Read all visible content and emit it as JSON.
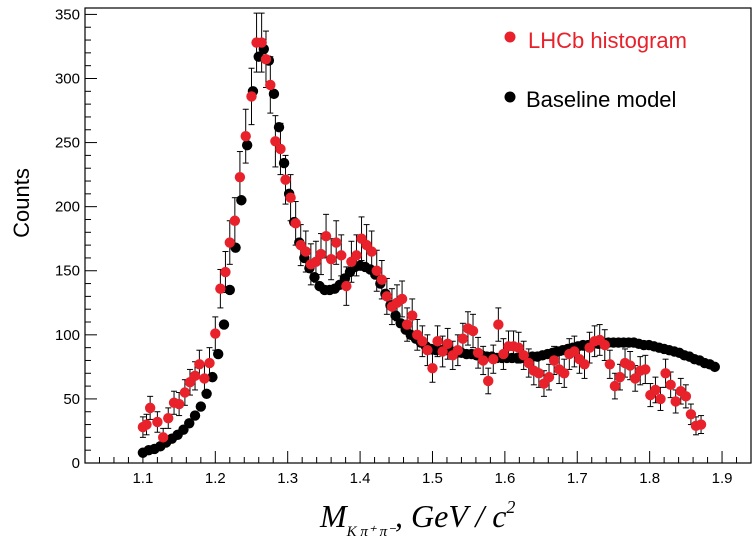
{
  "chart_data": {
    "type": "scatter",
    "xlabel": {
      "base": "M",
      "sub": "K π⁺ π⁻",
      "rest": ", GeV / c",
      "sup": "2"
    },
    "ylabel": "Counts",
    "xlim": [
      1.02,
      1.94
    ],
    "ylim": [
      0,
      355
    ],
    "xticks": [
      1.1,
      1.2,
      1.3,
      1.4,
      1.5,
      1.6,
      1.7,
      1.8,
      1.9
    ],
    "xtick_labels": [
      "1.1",
      "1.2",
      "1.3",
      "1.4",
      "1.5",
      "1.6",
      "1.7",
      "1.8",
      "1.9"
    ],
    "yticks": [
      0,
      50,
      100,
      150,
      200,
      250,
      300,
      350
    ],
    "ytick_labels": [
      "0",
      "50",
      "100",
      "150",
      "200",
      "250",
      "300",
      "350"
    ],
    "grid": false,
    "legend_position": "top-right",
    "series": [
      {
        "name": "LHCb histogram",
        "color": "#e8212b",
        "marker": "circle",
        "error_bars": true,
        "points": [
          [
            1.1,
            28,
            8
          ],
          [
            1.105,
            30,
            8
          ],
          [
            1.11,
            43,
            9
          ],
          [
            1.12,
            32,
            8
          ],
          [
            1.128,
            20,
            7
          ],
          [
            1.135,
            35,
            8
          ],
          [
            1.143,
            47,
            9
          ],
          [
            1.15,
            46,
            9
          ],
          [
            1.158,
            55,
            10
          ],
          [
            1.165,
            63,
            10
          ],
          [
            1.172,
            68,
            11
          ],
          [
            1.178,
            77,
            11
          ],
          [
            1.185,
            66,
            11
          ],
          [
            1.192,
            78,
            12
          ],
          [
            1.2,
            101,
            13
          ],
          [
            1.207,
            136,
            15
          ],
          [
            1.214,
            149,
            16
          ],
          [
            1.22,
            172,
            17
          ],
          [
            1.227,
            189,
            18
          ],
          [
            1.234,
            223,
            20
          ],
          [
            1.242,
            255,
            21
          ],
          [
            1.25,
            286,
            22
          ],
          [
            1.257,
            328,
            23
          ],
          [
            1.264,
            328,
            23
          ],
          [
            1.27,
            315,
            22
          ],
          [
            1.276,
            295,
            22
          ],
          [
            1.283,
            251,
            20
          ],
          [
            1.29,
            245,
            20
          ],
          [
            1.297,
            221,
            19
          ],
          [
            1.304,
            207,
            18
          ],
          [
            1.311,
            187,
            17
          ],
          [
            1.318,
            170,
            16
          ],
          [
            1.325,
            165,
            16
          ],
          [
            1.332,
            155,
            16
          ],
          [
            1.339,
            157,
            16
          ],
          [
            1.346,
            163,
            16
          ],
          [
            1.353,
            177,
            17
          ],
          [
            1.36,
            159,
            16
          ],
          [
            1.367,
            172,
            17
          ],
          [
            1.374,
            162,
            16
          ],
          [
            1.381,
            138,
            15
          ],
          [
            1.388,
            157,
            16
          ],
          [
            1.395,
            162,
            16
          ],
          [
            1.402,
            175,
            17
          ],
          [
            1.409,
            170,
            16
          ],
          [
            1.416,
            165,
            16
          ],
          [
            1.423,
            150,
            16
          ],
          [
            1.43,
            143,
            15
          ],
          [
            1.437,
            130,
            14
          ],
          [
            1.444,
            122,
            14
          ],
          [
            1.451,
            125,
            14
          ],
          [
            1.458,
            128,
            14
          ],
          [
            1.465,
            108,
            13
          ],
          [
            1.472,
            115,
            13
          ],
          [
            1.479,
            100,
            12
          ],
          [
            1.486,
            95,
            12
          ],
          [
            1.493,
            88,
            12
          ],
          [
            1.5,
            74,
            11
          ],
          [
            1.507,
            95,
            12
          ],
          [
            1.514,
            87,
            12
          ],
          [
            1.521,
            93,
            12
          ],
          [
            1.528,
            84,
            11
          ],
          [
            1.535,
            88,
            12
          ],
          [
            1.542,
            97,
            12
          ],
          [
            1.549,
            105,
            13
          ],
          [
            1.556,
            103,
            13
          ],
          [
            1.563,
            86,
            12
          ],
          [
            1.57,
            80,
            11
          ],
          [
            1.577,
            64,
            10
          ],
          [
            1.584,
            81,
            11
          ],
          [
            1.591,
            108,
            13
          ],
          [
            1.598,
            85,
            12
          ],
          [
            1.605,
            91,
            12
          ],
          [
            1.612,
            91,
            12
          ],
          [
            1.619,
            90,
            12
          ],
          [
            1.626,
            84,
            11
          ],
          [
            1.633,
            78,
            11
          ],
          [
            1.64,
            72,
            11
          ],
          [
            1.647,
            70,
            11
          ],
          [
            1.654,
            62,
            10
          ],
          [
            1.661,
            67,
            10
          ],
          [
            1.668,
            80,
            11
          ],
          [
            1.675,
            73,
            11
          ],
          [
            1.682,
            70,
            11
          ],
          [
            1.689,
            85,
            12
          ],
          [
            1.696,
            87,
            12
          ],
          [
            1.703,
            81,
            11
          ],
          [
            1.71,
            77,
            11
          ],
          [
            1.717,
            90,
            12
          ],
          [
            1.724,
            95,
            12
          ],
          [
            1.731,
            96,
            12
          ],
          [
            1.738,
            92,
            12
          ],
          [
            1.745,
            77,
            11
          ],
          [
            1.752,
            60,
            10
          ],
          [
            1.759,
            67,
            10
          ],
          [
            1.766,
            78,
            11
          ],
          [
            1.773,
            76,
            11
          ],
          [
            1.78,
            66,
            10
          ],
          [
            1.787,
            72,
            11
          ],
          [
            1.794,
            73,
            11
          ],
          [
            1.801,
            53,
            9
          ],
          [
            1.808,
            57,
            10
          ],
          [
            1.815,
            50,
            9
          ],
          [
            1.822,
            70,
            11
          ],
          [
            1.829,
            61,
            10
          ],
          [
            1.836,
            48,
            9
          ],
          [
            1.843,
            56,
            10
          ],
          [
            1.85,
            52,
            9
          ],
          [
            1.857,
            38,
            8
          ],
          [
            1.864,
            29,
            7
          ],
          [
            1.871,
            30,
            7
          ]
        ]
      },
      {
        "name": "Baseline model",
        "color": "#000000",
        "marker": "circle",
        "error_bars": false,
        "points": [
          [
            1.1,
            8
          ],
          [
            1.108,
            10
          ],
          [
            1.116,
            11
          ],
          [
            1.124,
            13
          ],
          [
            1.132,
            16
          ],
          [
            1.14,
            19
          ],
          [
            1.148,
            22
          ],
          [
            1.156,
            26
          ],
          [
            1.164,
            31
          ],
          [
            1.172,
            37
          ],
          [
            1.18,
            44
          ],
          [
            1.188,
            54
          ],
          [
            1.196,
            67
          ],
          [
            1.204,
            85
          ],
          [
            1.212,
            108
          ],
          [
            1.22,
            135
          ],
          [
            1.228,
            168
          ],
          [
            1.236,
            205
          ],
          [
            1.244,
            248
          ],
          [
            1.252,
            290
          ],
          [
            1.26,
            317
          ],
          [
            1.267,
            323
          ],
          [
            1.274,
            314
          ],
          [
            1.281,
            288
          ],
          [
            1.288,
            262
          ],
          [
            1.295,
            234
          ],
          [
            1.302,
            210
          ],
          [
            1.309,
            188
          ],
          [
            1.316,
            172
          ],
          [
            1.323,
            160
          ],
          [
            1.33,
            152
          ],
          [
            1.337,
            145
          ],
          [
            1.344,
            138
          ],
          [
            1.351,
            135
          ],
          [
            1.358,
            135
          ],
          [
            1.365,
            136
          ],
          [
            1.372,
            139
          ],
          [
            1.379,
            144
          ],
          [
            1.386,
            149
          ],
          [
            1.393,
            153
          ],
          [
            1.4,
            154
          ],
          [
            1.407,
            153
          ],
          [
            1.414,
            151
          ],
          [
            1.421,
            147
          ],
          [
            1.428,
            140
          ],
          [
            1.435,
            132
          ],
          [
            1.442,
            123
          ],
          [
            1.449,
            115
          ],
          [
            1.456,
            109
          ],
          [
            1.463,
            104
          ],
          [
            1.47,
            100
          ],
          [
            1.477,
            97
          ],
          [
            1.484,
            94
          ],
          [
            1.491,
            91
          ],
          [
            1.498,
            89
          ],
          [
            1.505,
            88
          ],
          [
            1.512,
            88
          ],
          [
            1.519,
            88
          ],
          [
            1.526,
            87
          ],
          [
            1.533,
            86
          ],
          [
            1.54,
            86
          ],
          [
            1.547,
            85
          ],
          [
            1.554,
            85
          ],
          [
            1.561,
            84
          ],
          [
            1.568,
            84
          ],
          [
            1.575,
            83
          ],
          [
            1.582,
            83
          ],
          [
            1.589,
            82
          ],
          [
            1.596,
            82
          ],
          [
            1.603,
            82
          ],
          [
            1.61,
            82
          ],
          [
            1.617,
            82
          ],
          [
            1.624,
            82
          ],
          [
            1.631,
            82
          ],
          [
            1.638,
            83
          ],
          [
            1.645,
            83
          ],
          [
            1.652,
            84
          ],
          [
            1.659,
            85
          ],
          [
            1.666,
            86
          ],
          [
            1.673,
            87
          ],
          [
            1.68,
            88
          ],
          [
            1.687,
            89
          ],
          [
            1.694,
            90
          ],
          [
            1.701,
            91
          ],
          [
            1.708,
            92
          ],
          [
            1.715,
            92
          ],
          [
            1.722,
            93
          ],
          [
            1.729,
            93
          ],
          [
            1.736,
            94
          ],
          [
            1.743,
            94
          ],
          [
            1.75,
            94
          ],
          [
            1.757,
            94
          ],
          [
            1.764,
            94
          ],
          [
            1.771,
            94
          ],
          [
            1.778,
            94
          ],
          [
            1.785,
            93
          ],
          [
            1.792,
            92
          ],
          [
            1.799,
            92
          ],
          [
            1.806,
            91
          ],
          [
            1.813,
            90
          ],
          [
            1.82,
            89
          ],
          [
            1.827,
            88
          ],
          [
            1.834,
            87
          ],
          [
            1.841,
            86
          ],
          [
            1.848,
            84
          ],
          [
            1.855,
            83
          ],
          [
            1.862,
            81
          ],
          [
            1.869,
            80
          ],
          [
            1.876,
            78
          ],
          [
            1.883,
            77
          ],
          [
            1.89,
            75
          ]
        ]
      }
    ]
  }
}
